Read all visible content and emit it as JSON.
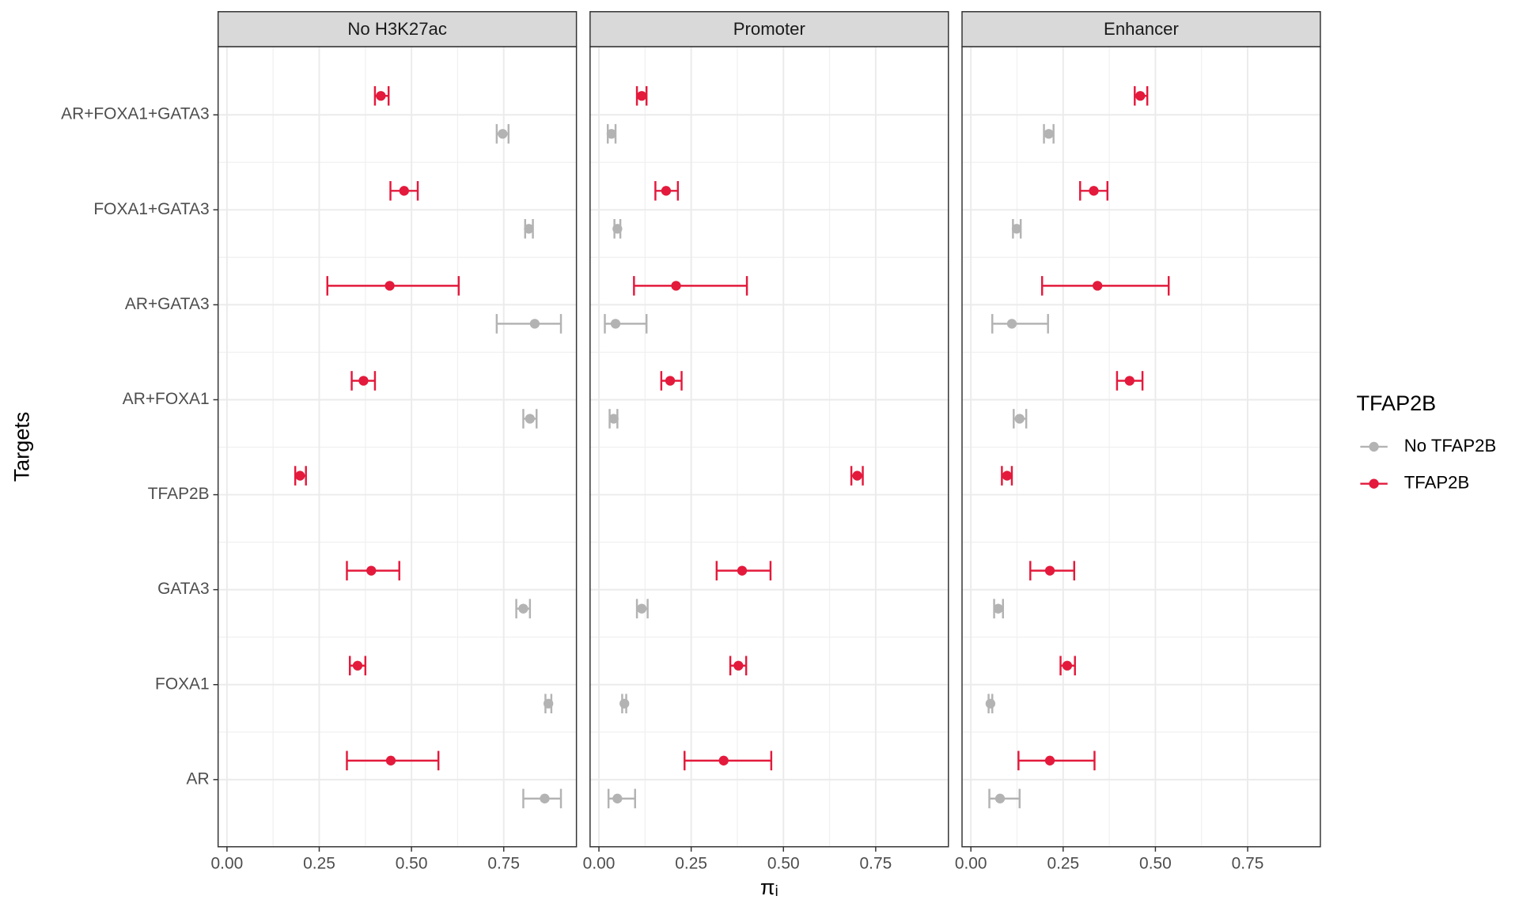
{
  "chart_data": {
    "type": "errorbar",
    "x_label": "πᵢ",
    "y_label": "Targets",
    "legend_title": "TFAP2B",
    "categories": [
      "AR+FOXA1+GATA3",
      "FOXA1+GATA3",
      "AR+GATA3",
      "AR+FOXA1",
      "TFAP2B",
      "GATA3",
      "FOXA1",
      "AR"
    ],
    "xlim": [
      -0.024,
      0.947
    ],
    "xticks": [
      {
        "value": 0,
        "label": "0.00"
      },
      {
        "value": 0.25,
        "label": "0.25"
      },
      {
        "value": 0.5,
        "label": "0.50"
      },
      {
        "value": 0.75,
        "label": "0.75"
      }
    ],
    "grid": true,
    "facets": [
      {
        "title": "No H3K27ac",
        "series": [
          {
            "name": "No TFAP2B",
            "color": "#b3b3b3",
            "values": [
              0.747,
              0.818,
              0.834,
              0.821,
              null,
              0.803,
              0.871,
              0.861
            ],
            "lower": [
              0.731,
              0.808,
              0.731,
              0.803,
              null,
              0.784,
              0.863,
              0.803
            ],
            "upper": [
              0.763,
              0.829,
              0.905,
              0.839,
              null,
              0.821,
              0.879,
              0.905
            ]
          },
          {
            "name": "TFAP2B",
            "color": "#e31a3c",
            "values": [
              0.417,
              0.48,
              0.441,
              0.37,
              0.198,
              0.391,
              0.354,
              0.444
            ],
            "lower": [
              0.401,
              0.443,
              0.272,
              0.338,
              0.185,
              0.325,
              0.333,
              0.325
            ],
            "upper": [
              0.438,
              0.517,
              0.628,
              0.401,
              0.214,
              0.467,
              0.375,
              0.573
            ]
          }
        ]
      },
      {
        "title": "Promoter",
        "series": [
          {
            "name": "No TFAP2B",
            "color": "#b3b3b3",
            "values": [
              0.034,
              0.05,
              0.045,
              0.04,
              null,
              0.116,
              0.069,
              0.05
            ],
            "lower": [
              0.024,
              0.042,
              0.016,
              0.029,
              null,
              0.103,
              0.063,
              0.026
            ],
            "upper": [
              0.045,
              0.058,
              0.129,
              0.05,
              null,
              0.132,
              0.074,
              0.098
            ]
          },
          {
            "name": "TFAP2B",
            "color": "#e31a3c",
            "values": [
              0.116,
              0.182,
              0.209,
              0.193,
              0.7,
              0.388,
              0.378,
              0.338
            ],
            "lower": [
              0.103,
              0.153,
              0.095,
              0.169,
              0.684,
              0.319,
              0.356,
              0.232
            ],
            "upper": [
              0.129,
              0.214,
              0.401,
              0.224,
              0.715,
              0.465,
              0.399,
              0.467
            ]
          }
        ]
      },
      {
        "title": "Enhancer",
        "series": [
          {
            "name": "No TFAP2B",
            "color": "#b3b3b3",
            "values": [
              0.211,
              0.124,
              0.111,
              0.132,
              null,
              0.074,
              0.053,
              0.079
            ],
            "lower": [
              0.198,
              0.114,
              0.058,
              0.116,
              null,
              0.063,
              0.048,
              0.05
            ],
            "upper": [
              0.224,
              0.135,
              0.209,
              0.15,
              null,
              0.087,
              0.058,
              0.132
            ]
          },
          {
            "name": "TFAP2B",
            "color": "#e31a3c",
            "values": [
              0.459,
              0.333,
              0.343,
              0.43,
              0.098,
              0.214,
              0.261,
              0.214
            ],
            "lower": [
              0.444,
              0.296,
              0.193,
              0.396,
              0.084,
              0.161,
              0.243,
              0.129
            ],
            "upper": [
              0.478,
              0.37,
              0.536,
              0.465,
              0.111,
              0.28,
              0.282,
              0.335
            ]
          }
        ]
      }
    ]
  }
}
